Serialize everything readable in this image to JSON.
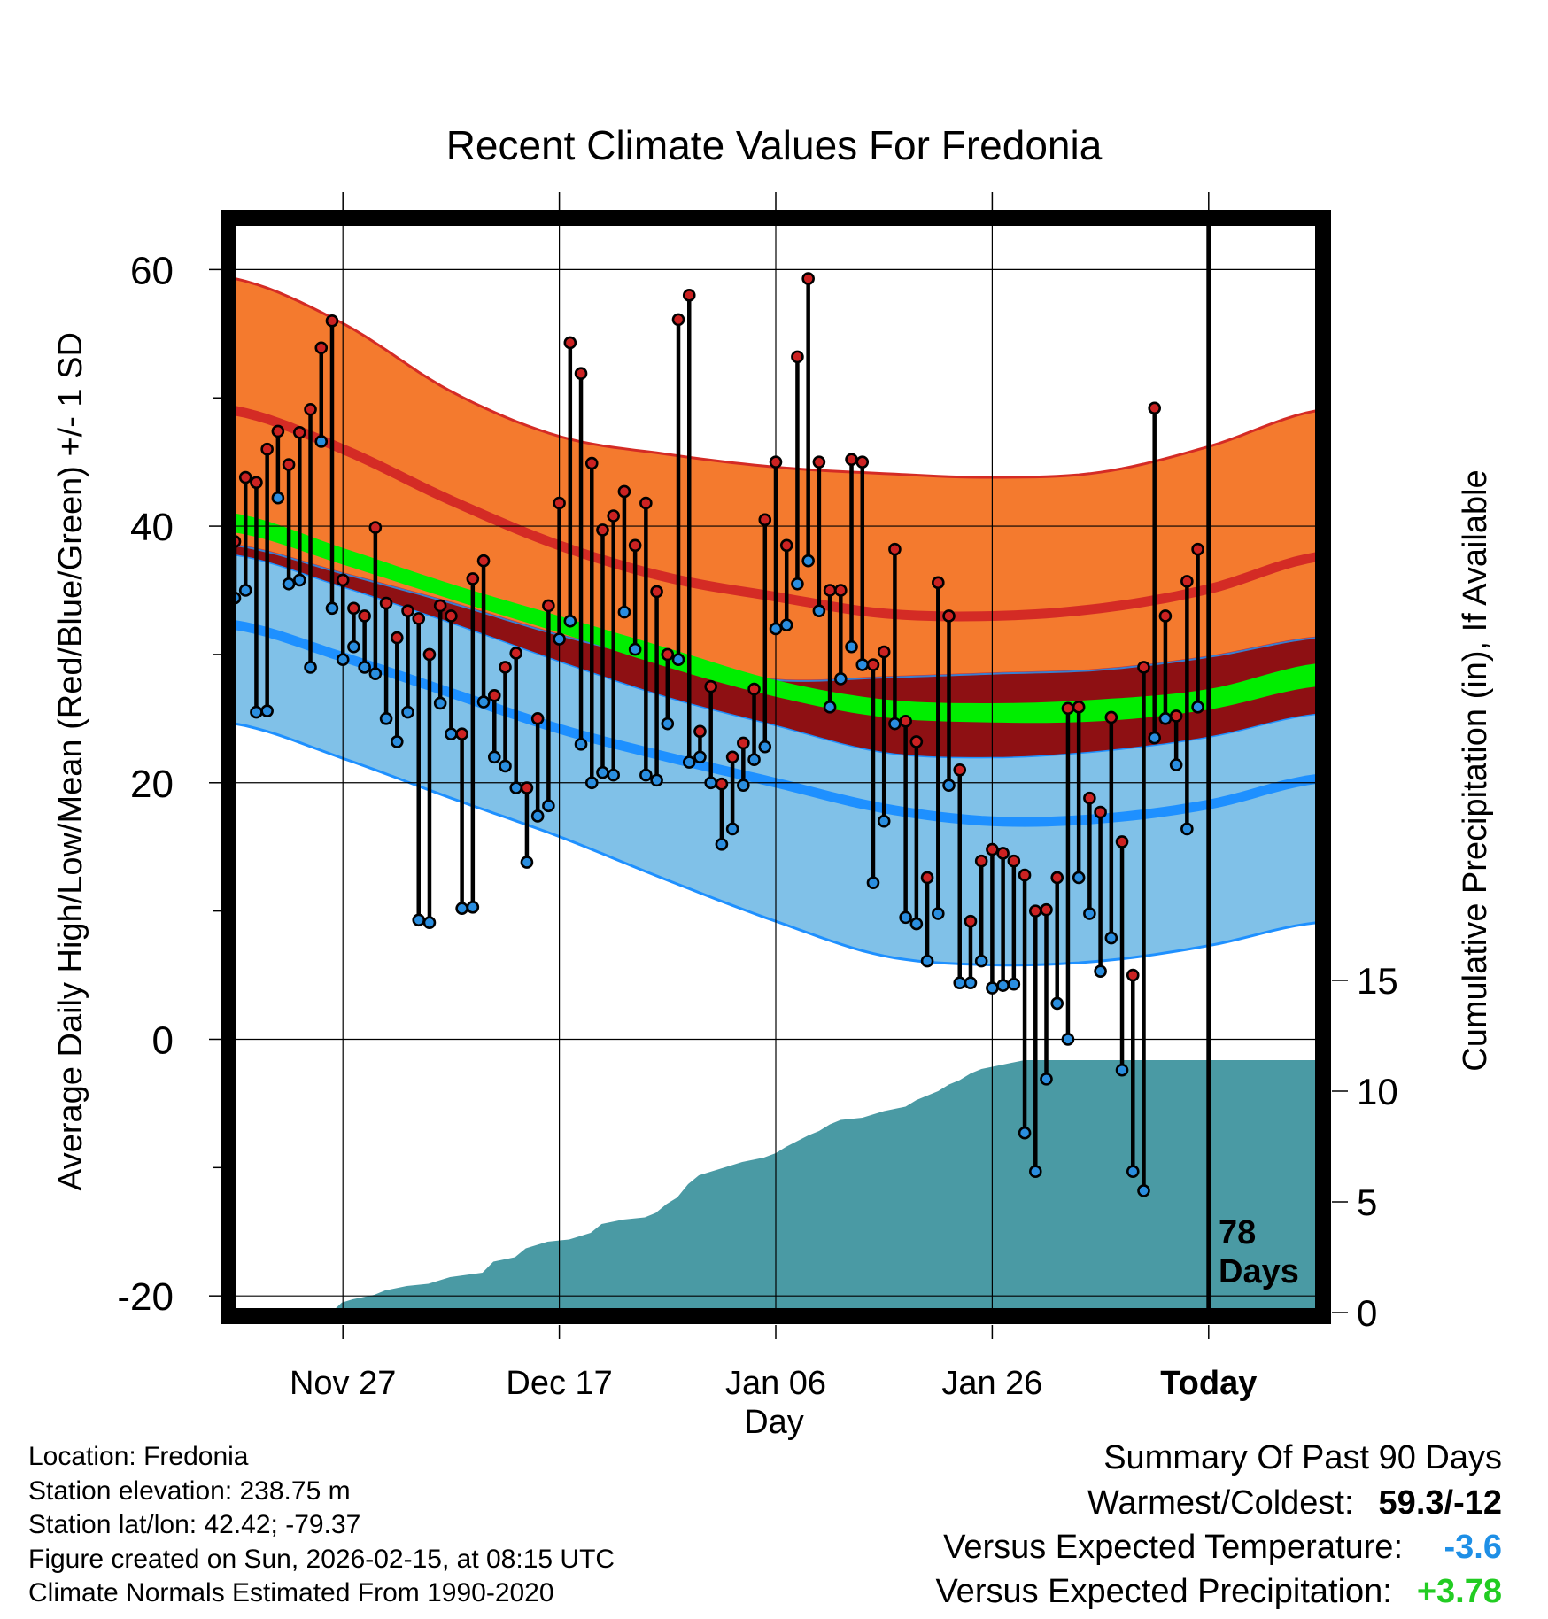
{
  "chart_data": {
    "type": "climate-range",
    "title": "Recent Climate Values For Fredonia",
    "xlabel": "Day",
    "ylabel": "Average Daily High/Low/Mean (Red/Blue/Green) +/- 1 SD",
    "y2label": "Cumulative Precipitation (in), If Available",
    "xlim_day_index": [
      0,
      100
    ],
    "ylim": [
      -21.3,
      64.1
    ],
    "y2lim": [
      0,
      15
    ],
    "y_ticks": [
      -20,
      0,
      20,
      40,
      60
    ],
    "y2_ticks": [
      0,
      5,
      10,
      15
    ],
    "x_ticks": [
      {
        "day": 10,
        "label": "Nov 27"
      },
      {
        "day": 30,
        "label": "Dec 17"
      },
      {
        "day": 50,
        "label": "Jan 06"
      },
      {
        "day": 70,
        "label": "Jan 26"
      },
      {
        "day": 90,
        "label": "Today"
      }
    ],
    "today_day": 90,
    "today_annotation": [
      "78",
      "Days"
    ],
    "colors": {
      "high_band": "#f47a2e",
      "high_mean": "#d42b25",
      "low_band": "#80c1e8",
      "low_mean": "#1e90ff",
      "mean_band": "#8e1013",
      "mean_mean": "#00ee00",
      "precip": "#4a9aa4",
      "obs_high": "#cc2222",
      "obs_low": "#2a8ee0"
    },
    "normals": {
      "days": [
        0,
        10,
        20,
        30,
        40,
        50,
        60,
        70,
        80,
        90,
        100
      ],
      "high_upper": [
        59.3,
        55.8,
        50.5,
        47,
        45.6,
        44.6,
        44.1,
        43.8,
        44.2,
        46.2,
        49
      ],
      "high_mean": [
        49,
        46,
        42,
        38.5,
        36,
        34.5,
        33.2,
        33,
        33.6,
        35.1,
        37.6
      ],
      "high_lower": [
        38.5,
        36.3,
        34,
        31.5,
        29.5,
        28,
        28.2,
        28.5,
        28.8,
        29.8,
        31.3
      ],
      "mean_upper": [
        41,
        38.3,
        35.5,
        33,
        30.5,
        28,
        26.5,
        26.2,
        26.5,
        27.3,
        29.3
      ],
      "mean_lower": [
        39.5,
        37,
        34.3,
        31.7,
        29,
        26.7,
        25.1,
        24.7,
        24.8,
        25.7,
        27.5
      ],
      "low_upper": [
        37.8,
        35.3,
        32.5,
        29.5,
        26.7,
        24.5,
        22.4,
        22,
        22.5,
        23.6,
        25.4
      ],
      "low_mean": [
        32.3,
        29.8,
        27,
        24.2,
        22,
        20,
        18,
        17,
        17.2,
        18.3,
        20.3
      ],
      "low_lower": [
        24.6,
        21.9,
        18.8,
        15.8,
        12.4,
        9.2,
        6.5,
        5.8,
        6.1,
        7.3,
        9.1
      ]
    },
    "precipitation": {
      "days": [
        0,
        8.9,
        9.9,
        10.9,
        12.9,
        13.9,
        15.9,
        17.9,
        19.9,
        22.9,
        23.9,
        25.9,
        26.9,
        28.9,
        30.9,
        32.9,
        33.9,
        35.9,
        37.9,
        38.9,
        39.9,
        40.9,
        41.9,
        42.9,
        44.9,
        46.9,
        48.9,
        50,
        51,
        53,
        54,
        55,
        56,
        58,
        60,
        62,
        63,
        64,
        65,
        66,
        67,
        68,
        69,
        70,
        71,
        72,
        73,
        100
      ],
      "values": [
        0,
        0,
        0.45,
        0.6,
        0.8,
        1,
        1.2,
        1.3,
        1.6,
        1.8,
        2.3,
        2.5,
        2.9,
        3.2,
        3.3,
        3.6,
        4,
        4.2,
        4.3,
        4.5,
        4.9,
        5.2,
        5.8,
        6.2,
        6.5,
        6.8,
        7,
        7.2,
        7.5,
        8,
        8.2,
        8.5,
        8.7,
        8.8,
        9.1,
        9.3,
        9.6,
        9.8,
        10,
        10.3,
        10.5,
        10.8,
        11,
        11.1,
        11.2,
        11.3,
        11.4,
        11.4
      ]
    },
    "observed": {
      "days": [
        0,
        1,
        2,
        3,
        4,
        5,
        6,
        7,
        8,
        9,
        10,
        11,
        12,
        13,
        14,
        15,
        16,
        17,
        18,
        19,
        20,
        21,
        22,
        23,
        24,
        25,
        26,
        27,
        28,
        29,
        30,
        31,
        32,
        33,
        34,
        35,
        36,
        37,
        38,
        39,
        40,
        41,
        42,
        43,
        44,
        45,
        46,
        47,
        48,
        49,
        50,
        51,
        52,
        53,
        54,
        55,
        56,
        57,
        58,
        59,
        60,
        61,
        62,
        63,
        64,
        65,
        66,
        67,
        68,
        69,
        70,
        71,
        72,
        73,
        74,
        75,
        76,
        77,
        78,
        79,
        80,
        81,
        82,
        83,
        84,
        85,
        86,
        87,
        88,
        89
      ],
      "high": [
        38.8,
        43.8,
        43.4,
        46,
        47.4,
        44.8,
        47.3,
        49.1,
        53.9,
        56,
        35.8,
        33.6,
        33,
        39.9,
        34,
        31.3,
        33.4,
        32.8,
        30,
        33.8,
        33,
        23.8,
        35.9,
        37.3,
        26.8,
        29,
        30.1,
        19.6,
        25,
        33.8,
        41.8,
        54.3,
        51.9,
        44.9,
        39.7,
        40.8,
        42.7,
        38.5,
        41.8,
        34.9,
        30,
        56.1,
        58,
        24,
        27.5,
        19.9,
        22,
        23.1,
        27.3,
        40.5,
        45,
        38.5,
        53.2,
        59.3,
        45,
        35,
        35,
        45.2,
        45,
        29.2,
        30.2,
        38.2,
        24.8,
        23.2,
        12.6,
        35.6,
        33,
        21,
        9.2,
        13.9,
        14.8,
        14.5,
        13.9,
        12.8,
        10,
        10.1,
        12.6,
        25.8,
        25.9,
        18.8,
        17.7,
        25.1,
        15.4,
        5,
        29,
        49.2,
        33,
        25.2,
        35.7,
        38.2
      ],
      "low": [
        34.4,
        35,
        25.5,
        25.6,
        42.2,
        35.5,
        35.8,
        29,
        46.6,
        33.6,
        29.6,
        30.6,
        29,
        28.5,
        25,
        23.2,
        25.5,
        9.3,
        9.1,
        26.2,
        23.8,
        10.2,
        10.3,
        26.3,
        22,
        21.3,
        19.6,
        13.8,
        17.4,
        18.2,
        31.2,
        32.6,
        23,
        20,
        20.8,
        20.6,
        33.3,
        30.4,
        20.6,
        20.2,
        24.6,
        29.6,
        21.6,
        22,
        20,
        15.2,
        16.4,
        19.8,
        21.8,
        22.8,
        32,
        32.3,
        35.5,
        37.3,
        33.4,
        25.9,
        28.1,
        30.6,
        29.2,
        12.2,
        17,
        24.6,
        9.5,
        9,
        6.1,
        9.8,
        19.8,
        4.4,
        4.4,
        6.1,
        4,
        4.2,
        4.3,
        -7.3,
        -10.3,
        -3.1,
        2.8,
        0,
        12.6,
        9.8,
        5.3,
        7.9,
        -2.4,
        -10.3,
        -11.8,
        23.5,
        25,
        21.4,
        16.4,
        25.9
      ]
    }
  },
  "info": {
    "location": "Location: Fredonia",
    "elevation": "Station elevation: 238.75 m",
    "latlon": "Station lat/lon: 42.42; -79.37",
    "created": "Figure created on Sun, 2026-02-15, at 08:15 UTC",
    "normals": "Climate Normals Estimated From 1990-2020"
  },
  "summary": {
    "title": "Summary Of Past 90 Days",
    "warmest_coldest_label": "Warmest/Coldest:",
    "warmest_coldest_value": "59.3/-12",
    "temp_label": "Versus Expected Temperature:",
    "temp_value": "-3.6",
    "temp_color": "#1e8fe6",
    "precip_label": "Versus Expected Precipitation:",
    "precip_value": "+3.78",
    "precip_color": "#22cc22"
  }
}
